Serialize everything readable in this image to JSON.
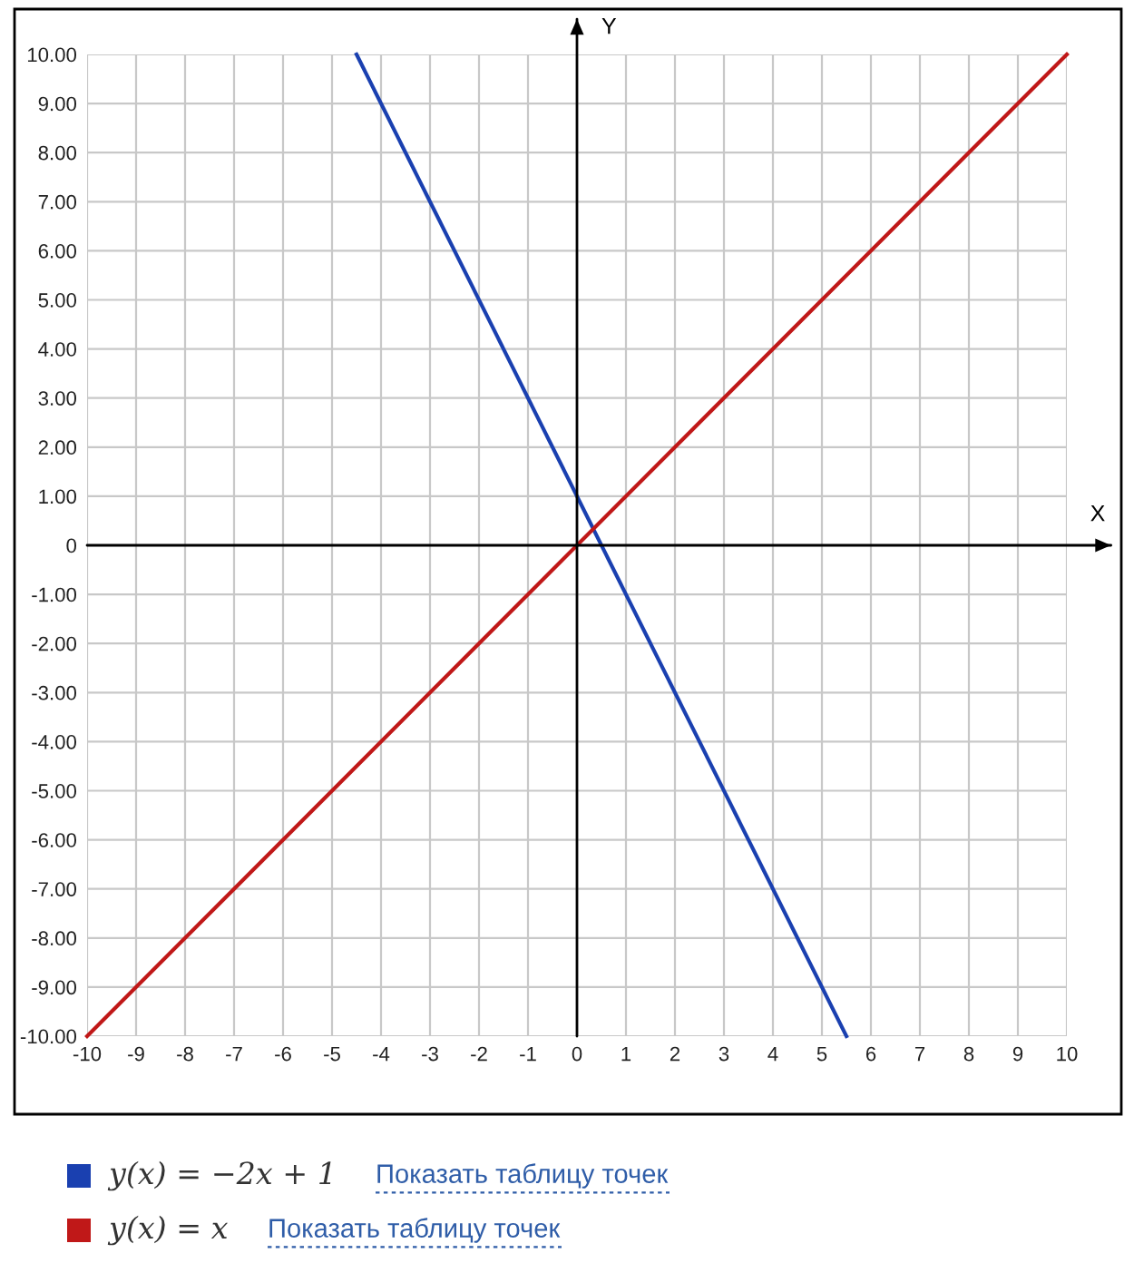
{
  "chart_data": {
    "type": "line",
    "xlabel": "X",
    "ylabel": "Y",
    "xlim": [
      -10,
      10
    ],
    "ylim": [
      -10,
      10
    ],
    "xticks": [
      -10,
      -9,
      -8,
      -7,
      -6,
      -5,
      -4,
      -3,
      -2,
      -1,
      0,
      1,
      2,
      3,
      4,
      5,
      6,
      7,
      8,
      9,
      10
    ],
    "yticks": [
      {
        "value": -10,
        "label": "-10.00"
      },
      {
        "value": -9,
        "label": "-9.00"
      },
      {
        "value": -8,
        "label": "-8.00"
      },
      {
        "value": -7,
        "label": "-7.00"
      },
      {
        "value": -6,
        "label": "-6.00"
      },
      {
        "value": -5,
        "label": "-5.00"
      },
      {
        "value": -4,
        "label": "-4.00"
      },
      {
        "value": -3,
        "label": "-3.00"
      },
      {
        "value": -2,
        "label": "-2.00"
      },
      {
        "value": -1,
        "label": "-1.00"
      },
      0,
      {
        "value": 1,
        "label": "1.00"
      },
      {
        "value": 2,
        "label": "2.00"
      },
      {
        "value": 3,
        "label": "3.00"
      },
      {
        "value": 4,
        "label": "4.00"
      },
      {
        "value": 5,
        "label": "5.00"
      },
      {
        "value": 6,
        "label": "6.00"
      },
      {
        "value": 7,
        "label": "7.00"
      },
      {
        "value": 8,
        "label": "8.00"
      },
      {
        "value": 9,
        "label": "9.00"
      },
      {
        "value": 10,
        "label": "10.00"
      }
    ],
    "series": [
      {
        "name": "y(x) = −2x + 1",
        "color": "#1a40b0",
        "x": [
          -4.5,
          5.5
        ],
        "values": [
          10,
          -10
        ]
      },
      {
        "name": "y(x) = x",
        "color": "#c01818",
        "x": [
          -10,
          10
        ],
        "values": [
          -10,
          10
        ]
      }
    ],
    "annotations": [
      "Показать таблицу точек",
      "Показать таблицу точек"
    ],
    "grid": true,
    "legend": "bottom",
    "marker": "none",
    "line_style": "solid"
  }
}
